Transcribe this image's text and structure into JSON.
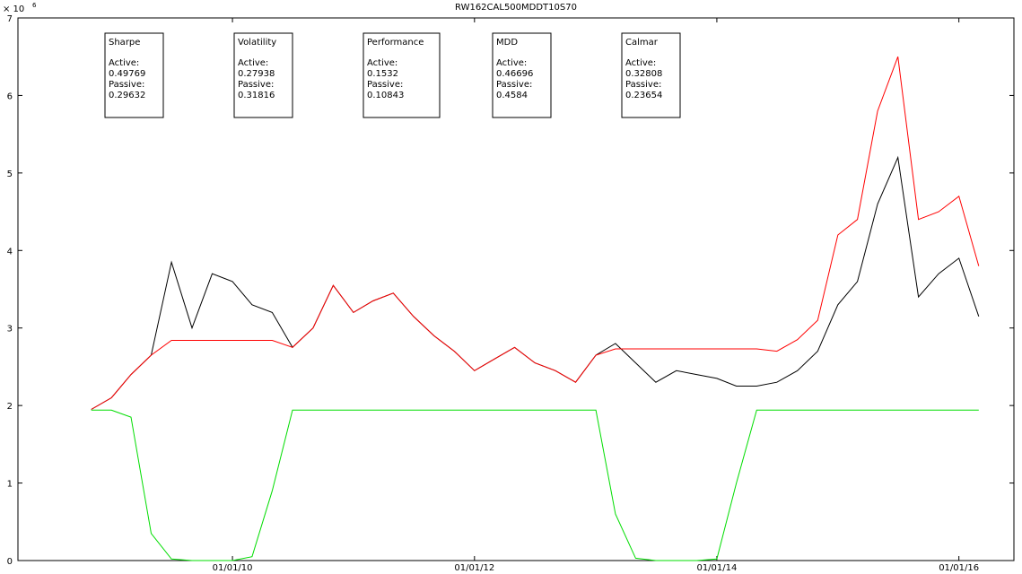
{
  "chart_data": {
    "type": "line",
    "title": "RW162CAL500MDDT10S70",
    "y_exponent_base": "× 10",
    "y_exponent": "6",
    "x": [
      "2008-11-01",
      "2009-01-01",
      "2009-03-01",
      "2009-05-01",
      "2009-07-01",
      "2009-09-01",
      "2009-11-01",
      "2010-01-01",
      "2010-03-01",
      "2010-05-01",
      "2010-07-01",
      "2010-09-01",
      "2010-11-01",
      "2011-01-01",
      "2011-03-01",
      "2011-05-01",
      "2011-07-01",
      "2011-09-01",
      "2011-11-01",
      "2012-01-01",
      "2012-03-01",
      "2012-05-01",
      "2012-07-01",
      "2012-09-01",
      "2012-11-01",
      "2013-01-01",
      "2013-03-01",
      "2013-05-01",
      "2013-07-01",
      "2013-09-01",
      "2013-11-01",
      "2014-01-01",
      "2014-03-01",
      "2014-05-01",
      "2014-07-01",
      "2014-09-01",
      "2014-11-01",
      "2015-01-01",
      "2015-03-01",
      "2015-05-01",
      "2015-07-01",
      "2015-09-01",
      "2015-11-01",
      "2016-01-01",
      "2016-03-01"
    ],
    "series": [
      {
        "color": "#000000",
        "values": [
          1.95,
          2.1,
          2.4,
          2.65,
          3.85,
          3.0,
          3.7,
          3.6,
          3.3,
          3.2,
          2.75,
          3.0,
          3.55,
          3.2,
          3.35,
          3.45,
          3.15,
          2.9,
          2.7,
          2.45,
          2.6,
          2.75,
          2.55,
          2.45,
          2.3,
          2.65,
          2.8,
          2.55,
          2.3,
          2.45,
          2.4,
          2.35,
          2.25,
          2.25,
          2.3,
          2.45,
          2.7,
          3.3,
          3.6,
          4.6,
          5.2,
          3.4,
          3.7,
          3.9,
          3.15
        ]
      },
      {
        "color": "#ff0000",
        "values": [
          1.95,
          2.1,
          2.4,
          2.65,
          2.84,
          2.84,
          2.84,
          2.84,
          2.84,
          2.84,
          2.75,
          3.0,
          3.55,
          3.2,
          3.35,
          3.45,
          3.15,
          2.9,
          2.7,
          2.45,
          2.6,
          2.75,
          2.55,
          2.45,
          2.3,
          2.65,
          2.73,
          2.73,
          2.73,
          2.73,
          2.73,
          2.73,
          2.73,
          2.73,
          2.7,
          2.85,
          3.1,
          4.2,
          4.4,
          5.8,
          6.5,
          4.4,
          4.5,
          4.7,
          3.8
        ]
      },
      {
        "color": "#00dd00",
        "values": [
          1.94,
          1.94,
          1.85,
          0.35,
          0.02,
          0,
          0,
          0,
          0.05,
          0.9,
          1.94,
          1.94,
          1.94,
          1.94,
          1.94,
          1.94,
          1.94,
          1.94,
          1.94,
          1.94,
          1.94,
          1.94,
          1.94,
          1.94,
          1.94,
          1.94,
          0.6,
          0.03,
          0,
          0,
          0,
          0.02,
          1.0,
          1.94,
          1.94,
          1.94,
          1.94,
          1.94,
          1.94,
          1.94,
          1.94,
          1.94,
          1.94,
          1.94,
          1.94
        ]
      }
    ],
    "xlim": [
      "2008-03-25",
      "2016-06-15"
    ],
    "xticks": [
      {
        "value": "2010-01-01",
        "label": "01/01/10"
      },
      {
        "value": "2012-01-01",
        "label": "01/01/12"
      },
      {
        "value": "2014-01-01",
        "label": "01/01/14"
      },
      {
        "value": "2016-01-01",
        "label": "01/01/16"
      }
    ],
    "ylim": [
      0,
      7
    ],
    "yticks": [
      0,
      1,
      2,
      3,
      4,
      5,
      6,
      7
    ],
    "grid": false,
    "annotations": [
      {
        "title": "Sharpe",
        "active_label": "Active:",
        "active": "0.49769",
        "passive_label": "Passive:",
        "passive": "0.29632"
      },
      {
        "title": "Volatility",
        "active_label": "Active:",
        "active": "0.27938",
        "passive_label": "Passive:",
        "passive": "0.31816"
      },
      {
        "title": "Performance",
        "active_label": "Active:",
        "active": "0.1532",
        "passive_label": "Passive:",
        "passive": "0.10843"
      },
      {
        "title": "MDD",
        "active_label": "Active:",
        "active": "0.46696",
        "passive_label": "Passive:",
        "passive": "0.4584"
      },
      {
        "title": "Calmar",
        "active_label": "Active:",
        "active": "0.32808",
        "passive_label": "Passive:",
        "passive": "0.23654"
      }
    ]
  }
}
